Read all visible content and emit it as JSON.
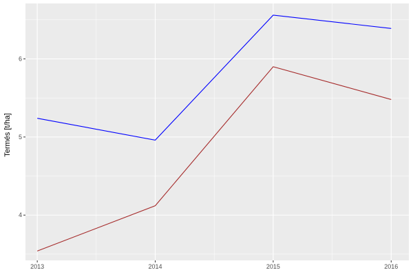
{
  "chart_data": {
    "type": "line",
    "title": "",
    "xlabel": "",
    "ylabel": "Termés [t/ha]",
    "x": [
      2013,
      2014,
      2015,
      2016
    ],
    "x_tick_labels": [
      "2013",
      "2014",
      "2015",
      "2016"
    ],
    "y_ticks": [
      4,
      5,
      6
    ],
    "y_tick_labels": [
      "4",
      "5",
      "6"
    ],
    "xlim": [
      2012.9,
      2016.15
    ],
    "ylim": [
      3.42,
      6.71
    ],
    "grid": true,
    "legend": "none",
    "background": "#EBEBEB",
    "series": [
      {
        "color": "#0000FF",
        "values": [
          5.24,
          4.96,
          6.56,
          6.39
        ]
      },
      {
        "color": "#A52A2A",
        "values": [
          3.54,
          4.12,
          5.9,
          5.48
        ]
      }
    ]
  }
}
